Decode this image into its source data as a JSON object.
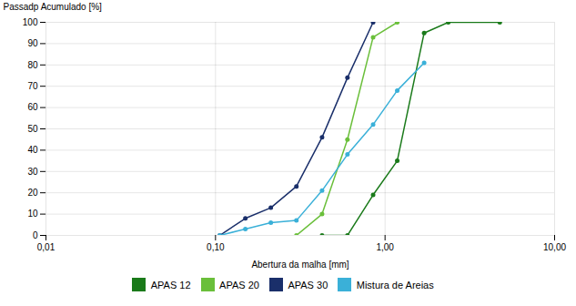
{
  "chart_data": {
    "type": "line",
    "xlabel": "Abertura da malha [mm]",
    "ylabel": "Passadp Acumulado [%]",
    "log": "x",
    "xlim": [
      0.01,
      10.0
    ],
    "ylim": [
      0,
      100
    ],
    "xticks": [
      {
        "value": 0.01,
        "label": "0,01"
      },
      {
        "value": 0.1,
        "label": "0,10"
      },
      {
        "value": 1.0,
        "label": "1,00"
      },
      {
        "value": 10.0,
        "label": "10,00"
      }
    ],
    "yticks": [
      0,
      10,
      20,
      30,
      40,
      50,
      60,
      70,
      80,
      90,
      100
    ],
    "grid": true,
    "legend": "bottom",
    "marker": "circle",
    "series": [
      {
        "name": "APAS 12",
        "color": "#1a7a1a",
        "x": [
          0.425,
          0.6,
          0.85,
          1.18,
          1.7,
          2.36,
          4.75
        ],
        "values": [
          0,
          0,
          19,
          35,
          95,
          100,
          100
        ]
      },
      {
        "name": "APAS 20",
        "color": "#6abf3a",
        "x": [
          0.3,
          0.425,
          0.6,
          0.85,
          1.18
        ],
        "values": [
          0,
          10,
          45,
          93,
          100
        ]
      },
      {
        "name": "APAS 30",
        "color": "#1a2f6a",
        "x": [
          0.106,
          0.15,
          0.212,
          0.3,
          0.425,
          0.6,
          0.85
        ],
        "values": [
          0,
          8,
          13,
          23,
          46,
          74,
          100
        ]
      },
      {
        "name": "Mistura de Areias",
        "color": "#3ab0d8",
        "x": [
          0.106,
          0.15,
          0.212,
          0.3,
          0.425,
          0.6,
          0.85,
          1.18,
          1.7
        ],
        "values": [
          0,
          3,
          6,
          7,
          21,
          38,
          52,
          68,
          81
        ]
      }
    ]
  }
}
